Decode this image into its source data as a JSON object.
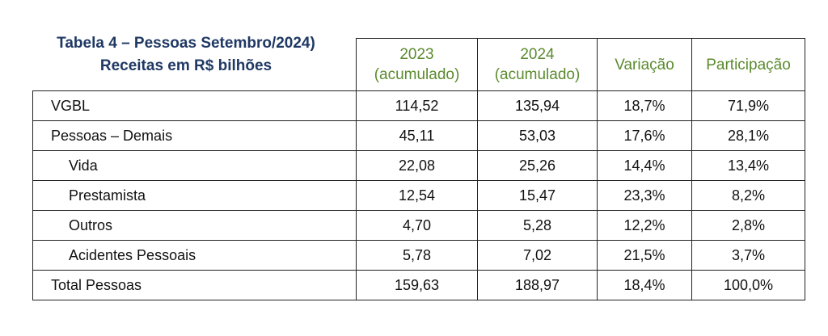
{
  "header": {
    "title": [
      "Tabela 4 – Pessoas Setembro/2024)",
      "Receitas em R$ bilhões"
    ]
  },
  "table": {
    "columns": [
      [
        "2023",
        "(acumulado)"
      ],
      [
        "2024",
        "(acumulado)"
      ],
      [
        "Variação"
      ],
      [
        "Participação"
      ]
    ],
    "rows": [
      [
        "VGBL",
        "114,52",
        "135,94",
        "18,7%",
        "71,9%"
      ],
      [
        "Pessoas – Demais",
        "45,11",
        "53,03",
        "17,6%",
        "28,1%"
      ],
      [
        "Vida",
        "22,08",
        "25,26",
        "14,4%",
        "13,4%"
      ],
      [
        "Prestamista",
        "12,54",
        "15,47",
        "23,3%",
        "8,2%"
      ],
      [
        "Outros",
        "4,70",
        "5,28",
        "12,2%",
        "2,8%"
      ],
      [
        "Acidentes Pessoais",
        "5,78",
        "7,02",
        "21,5%",
        "3,7%"
      ],
      [
        "Total Pessoas",
        "159,63",
        "188,97",
        "18,4%",
        "100,0%"
      ]
    ]
  }
}
